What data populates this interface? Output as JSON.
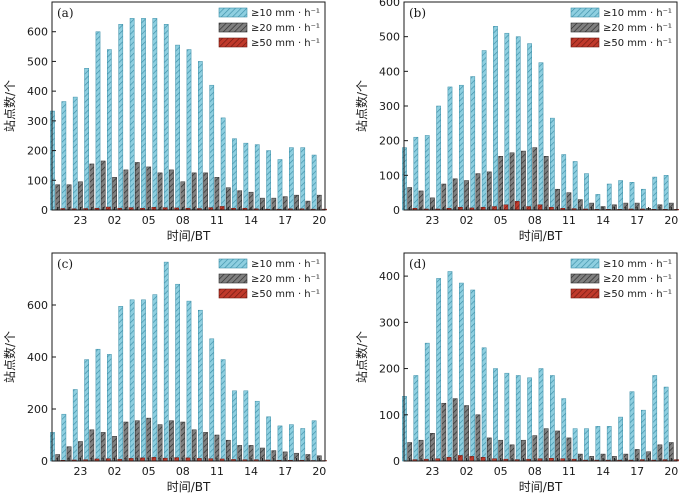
{
  "colors": {
    "ge10": "#8ecfe0",
    "ge10_hatch": "#3d8fa8",
    "ge20": "#7f7f7f",
    "ge20_hatch": "#2b2b2b",
    "ge50": "#c0392b",
    "ge50_hatch": "#6e1a12"
  },
  "chart_data": [
    {
      "panel_label": "(a)",
      "type": "bar",
      "xlabel": "时间/BT",
      "ylabel": "站点数/个",
      "ylim": [
        0,
        700
      ],
      "yticks": [
        0,
        100,
        200,
        300,
        400,
        500,
        600
      ],
      "categories": [
        "21",
        "22",
        "23",
        "00",
        "01",
        "02",
        "03",
        "04",
        "05",
        "06",
        "07",
        "08",
        "09",
        "10",
        "11",
        "12",
        "13",
        "14",
        "15",
        "16",
        "17",
        "18",
        "19",
        "20"
      ],
      "xtick_labels": [
        "23",
        "02",
        "05",
        "08",
        "11",
        "14",
        "17",
        "20"
      ],
      "legend": [
        "≥10 mm · h⁻¹",
        "≥20 mm · h⁻¹",
        "≥50 mm · h⁻¹"
      ],
      "series": [
        {
          "name": "≥10 mm · h⁻¹",
          "values": [
            333,
            365,
            380,
            477,
            600,
            540,
            625,
            645,
            645,
            645,
            625,
            555,
            540,
            500,
            420,
            310,
            240,
            225,
            220,
            200,
            170,
            210,
            210,
            185
          ]
        },
        {
          "name": "≥20 mm · h⁻¹",
          "values": [
            85,
            85,
            95,
            155,
            165,
            110,
            135,
            160,
            145,
            125,
            135,
            95,
            125,
            125,
            110,
            75,
            65,
            60,
            40,
            40,
            45,
            50,
            30,
            50
          ]
        },
        {
          "name": "≥50 mm · h⁻¹",
          "values": [
            5,
            4,
            5,
            6,
            10,
            6,
            8,
            6,
            9,
            8,
            7,
            6,
            5,
            8,
            12,
            6,
            6,
            4,
            3,
            3,
            4,
            4,
            3,
            3
          ]
        }
      ]
    },
    {
      "panel_label": "(b)",
      "type": "bar",
      "xlabel": "时间/BT",
      "ylabel": "站点数/个",
      "ylim": [
        0,
        600
      ],
      "yticks": [
        0,
        100,
        200,
        300,
        400,
        500,
        600
      ],
      "categories": [
        "21",
        "22",
        "23",
        "00",
        "01",
        "02",
        "03",
        "04",
        "05",
        "06",
        "07",
        "08",
        "09",
        "10",
        "11",
        "12",
        "13",
        "14",
        "15",
        "16",
        "17",
        "18",
        "19",
        "20"
      ],
      "xtick_labels": [
        "23",
        "02",
        "05",
        "08",
        "11",
        "14",
        "17",
        "20"
      ],
      "legend": [
        "≥10 mm · h⁻¹",
        "≥20 mm · h⁻¹",
        "≥50 mm · h⁻¹"
      ],
      "series": [
        {
          "name": "≥10 mm · h⁻¹",
          "values": [
            180,
            210,
            215,
            300,
            355,
            360,
            385,
            460,
            530,
            510,
            500,
            480,
            425,
            265,
            160,
            140,
            105,
            45,
            75,
            85,
            80,
            60,
            95,
            100
          ]
        },
        {
          "name": "≥20 mm · h⁻¹",
          "values": [
            65,
            55,
            35,
            75,
            90,
            85,
            105,
            110,
            155,
            165,
            170,
            180,
            155,
            60,
            50,
            30,
            20,
            10,
            15,
            20,
            20,
            5,
            15,
            20
          ]
        },
        {
          "name": "≥50 mm · h⁻¹",
          "values": [
            5,
            3,
            3,
            5,
            8,
            6,
            8,
            10,
            15,
            25,
            10,
            15,
            8,
            5,
            4,
            3,
            2,
            2,
            2,
            3,
            3,
            2,
            2,
            2
          ]
        }
      ]
    },
    {
      "panel_label": "(c)",
      "type": "bar",
      "xlabel": "时间/BT",
      "ylabel": "站点数/个",
      "ylim": [
        0,
        800
      ],
      "yticks": [
        0,
        200,
        400,
        600
      ],
      "categories": [
        "21",
        "22",
        "23",
        "00",
        "01",
        "02",
        "03",
        "04",
        "05",
        "06",
        "07",
        "08",
        "09",
        "10",
        "11",
        "12",
        "13",
        "14",
        "15",
        "16",
        "17",
        "18",
        "19",
        "20"
      ],
      "xtick_labels": [
        "23",
        "02",
        "05",
        "08",
        "11",
        "14",
        "17",
        "20"
      ],
      "legend": [
        "≥10 mm · h⁻¹",
        "≥20 mm · h⁻¹",
        "≥50 mm · h⁻¹"
      ],
      "series": [
        {
          "name": "≥10 mm · h⁻¹",
          "values": [
            110,
            180,
            275,
            390,
            430,
            410,
            595,
            620,
            620,
            640,
            765,
            680,
            615,
            580,
            470,
            390,
            270,
            270,
            230,
            170,
            135,
            140,
            125,
            155
          ]
        },
        {
          "name": "≥20 mm · h⁻¹",
          "values": [
            25,
            55,
            75,
            120,
            110,
            95,
            150,
            155,
            165,
            140,
            155,
            150,
            120,
            110,
            100,
            80,
            60,
            60,
            50,
            40,
            35,
            30,
            25,
            20
          ]
        },
        {
          "name": "≥50 mm · h⁻¹",
          "values": [
            3,
            4,
            5,
            8,
            9,
            7,
            10,
            12,
            14,
            11,
            13,
            12,
            10,
            9,
            8,
            6,
            5,
            5,
            4,
            3,
            3,
            3,
            2,
            2
          ]
        }
      ]
    },
    {
      "panel_label": "(d)",
      "type": "bar",
      "xlabel": "时间/BT",
      "ylabel": "站点数/个",
      "ylim": [
        0,
        450
      ],
      "yticks": [
        0,
        100,
        200,
        300,
        400
      ],
      "categories": [
        "21",
        "22",
        "23",
        "00",
        "01",
        "02",
        "03",
        "04",
        "05",
        "06",
        "07",
        "08",
        "09",
        "10",
        "11",
        "12",
        "13",
        "14",
        "15",
        "16",
        "17",
        "18",
        "19",
        "20"
      ],
      "xtick_labels": [
        "23",
        "02",
        "05",
        "08",
        "11",
        "14",
        "17",
        "20"
      ],
      "legend": [
        "≥10 mm · h⁻¹",
        "≥20 mm · h⁻¹",
        "≥50 mm · h⁻¹"
      ],
      "series": [
        {
          "name": "≥10 mm · h⁻¹",
          "values": [
            140,
            185,
            255,
            395,
            410,
            385,
            370,
            245,
            200,
            190,
            185,
            180,
            200,
            185,
            135,
            70,
            70,
            75,
            75,
            95,
            150,
            110,
            185,
            160
          ]
        },
        {
          "name": "≥20 mm · h⁻¹",
          "values": [
            40,
            45,
            60,
            125,
            135,
            120,
            100,
            50,
            45,
            35,
            45,
            55,
            70,
            65,
            50,
            15,
            10,
            15,
            10,
            15,
            25,
            20,
            35,
            40
          ]
        },
        {
          "name": "≥50 mm · h⁻¹",
          "values": [
            3,
            4,
            5,
            8,
            12,
            10,
            8,
            5,
            4,
            3,
            4,
            5,
            6,
            5,
            4,
            2,
            2,
            2,
            2,
            2,
            3,
            2,
            3,
            3
          ]
        }
      ]
    }
  ]
}
